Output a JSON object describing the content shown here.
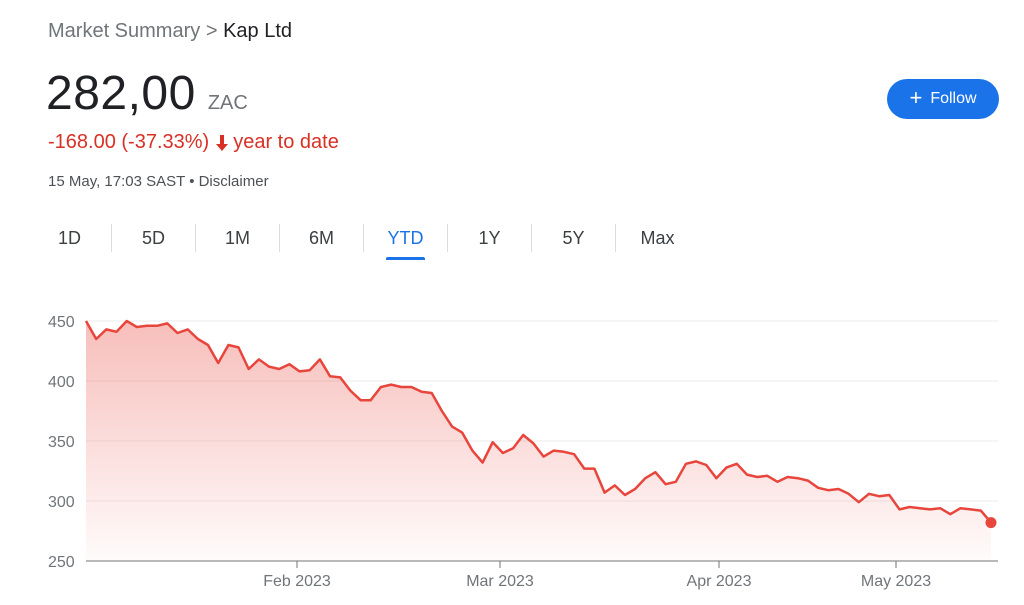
{
  "breadcrumb": {
    "parent": "Market Summary",
    "separator": ">",
    "current": "Kap Ltd"
  },
  "quote": {
    "price": "282,00",
    "currency": "ZAC",
    "change": "-168.00 (-37.33%)",
    "change_period": "year to date",
    "timestamp": "15 May, 17:03 SAST",
    "dot": "•",
    "disclaimer": "Disclaimer"
  },
  "follow_button": {
    "label": "Follow"
  },
  "tabs": [
    {
      "label": "1D"
    },
    {
      "label": "5D"
    },
    {
      "label": "1M"
    },
    {
      "label": "6M"
    },
    {
      "label": "YTD",
      "active": true
    },
    {
      "label": "1Y"
    },
    {
      "label": "5Y"
    },
    {
      "label": "Max"
    }
  ],
  "colors": {
    "accent": "#1a73e8",
    "negative": "#d93025",
    "line": "#e8453c"
  },
  "icons": {
    "change": "arrow-down-icon",
    "follow": "plus-icon"
  },
  "chart_data": {
    "type": "area",
    "xlabels": [
      "Feb 2023",
      "Mar 2023",
      "Apr 2023",
      "May 2023"
    ],
    "yticks": [
      250,
      300,
      350,
      400,
      450
    ],
    "ylim": [
      250,
      460
    ],
    "grid": true,
    "series": [
      {
        "values": [
          450,
          435,
          443,
          441,
          450,
          445,
          446,
          446,
          448,
          440,
          443,
          435,
          430,
          415,
          430,
          428,
          410,
          418,
          412,
          410,
          414,
          408,
          409,
          418,
          404,
          403,
          392,
          384,
          384,
          395,
          397,
          395,
          395,
          391,
          390,
          375,
          362,
          357,
          342,
          332,
          349,
          340,
          344,
          355,
          348,
          337,
          342,
          341,
          339,
          327,
          327,
          307,
          313,
          305,
          310,
          319,
          324,
          314,
          316,
          331,
          333,
          330,
          319,
          328,
          331,
          322,
          320,
          321,
          316,
          320,
          319,
          317,
          311,
          309,
          310,
          306,
          299,
          306,
          304,
          305,
          293,
          295,
          294,
          293,
          294,
          289,
          294,
          293,
          292,
          282
        ]
      }
    ]
  }
}
